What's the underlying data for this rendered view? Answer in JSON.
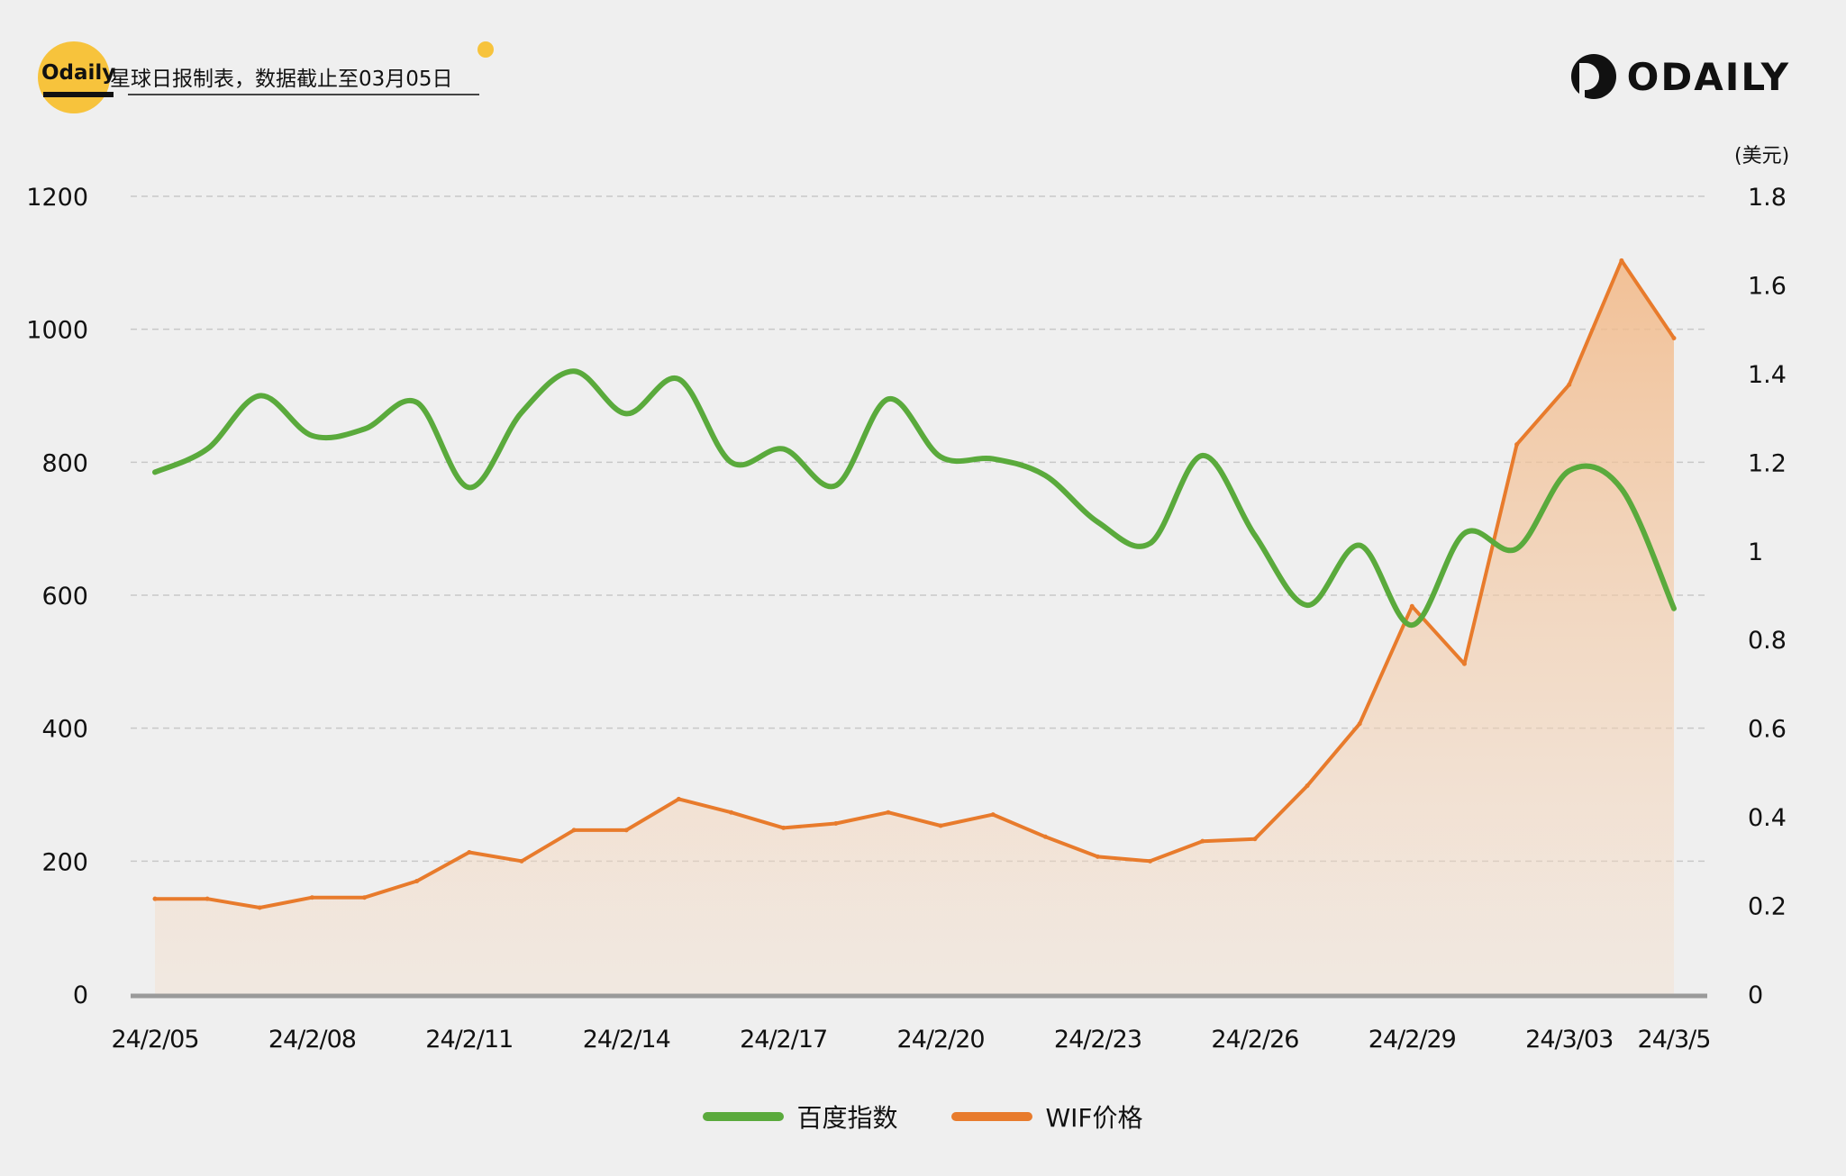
{
  "header": {
    "brand": "Odaily",
    "subtitle": "星球日报制表，数据截止至03月05日",
    "logo_text": "ODAILY"
  },
  "colors": {
    "green": "#5aaa3c",
    "orange": "#e87b2c",
    "fill": "#f2c9a6",
    "grid": "#c8c8c8",
    "brand_yellow": "#f7c33c"
  },
  "chart_data": {
    "type": "line",
    "title": "",
    "x_ticks": [
      "24/2/05",
      "24/2/08",
      "24/2/11",
      "24/2/14",
      "24/2/17",
      "24/2/20",
      "24/2/23",
      "24/2/26",
      "24/2/29",
      "24/3/03",
      "24/3/5"
    ],
    "y_left": {
      "ticks": [
        "0",
        "200",
        "400",
        "600",
        "800",
        "1000",
        "1200"
      ],
      "range": [
        0,
        1200
      ]
    },
    "y_right": {
      "ticks": [
        "0",
        "0.2",
        "0.4",
        "0.6",
        "0.8",
        "1",
        "1.2",
        "1.4",
        "1.6",
        "1.8"
      ],
      "range": [
        0,
        1.8
      ],
      "unit": "(美元)"
    },
    "legend_position": "bottom-center",
    "series": [
      {
        "name": "百度指数",
        "axis": "left",
        "color": "#5aaa3c",
        "x": [
          "24/2/05",
          "24/2/06",
          "24/2/07",
          "24/2/08",
          "24/2/09",
          "24/2/10",
          "24/2/11",
          "24/2/12",
          "24/2/13",
          "24/2/14",
          "24/2/15",
          "24/2/16",
          "24/2/17",
          "24/2/18",
          "24/2/19",
          "24/2/20",
          "24/2/21",
          "24/2/22",
          "24/2/23",
          "24/2/24",
          "24/2/25",
          "24/2/26",
          "24/2/27",
          "24/2/28",
          "24/2/29",
          "24/3/01",
          "24/3/02",
          "24/3/03",
          "24/3/04",
          "24/3/05"
        ],
        "values": [
          785,
          820,
          900,
          840,
          850,
          890,
          762,
          875,
          937,
          873,
          925,
          800,
          820,
          765,
          895,
          808,
          805,
          780,
          710,
          678,
          810,
          690,
          585,
          675,
          555,
          693,
          670,
          787,
          760,
          580
        ]
      },
      {
        "name": "WIF价格",
        "axis": "right",
        "color": "#e87b2c",
        "x": [
          "24/2/05",
          "24/2/06",
          "24/2/07",
          "24/2/08",
          "24/2/09",
          "24/2/10",
          "24/2/11",
          "24/2/12",
          "24/2/13",
          "24/2/14",
          "24/2/15",
          "24/2/16",
          "24/2/17",
          "24/2/18",
          "24/2/19",
          "24/2/20",
          "24/2/21",
          "24/2/22",
          "24/2/23",
          "24/2/24",
          "24/2/25",
          "24/2/26",
          "24/2/27",
          "24/2/28",
          "24/2/29",
          "24/3/01",
          "24/3/02",
          "24/3/03",
          "24/3/04",
          "24/3/05"
        ],
        "values": [
          0.215,
          0.215,
          0.195,
          0.218,
          0.218,
          0.255,
          0.32,
          0.3,
          0.37,
          0.37,
          0.44,
          0.41,
          0.375,
          0.385,
          0.41,
          0.38,
          0.405,
          0.355,
          0.31,
          0.3,
          0.345,
          0.35,
          0.47,
          0.61,
          0.875,
          0.745,
          1.24,
          1.375,
          1.655,
          1.48
        ]
      }
    ]
  }
}
